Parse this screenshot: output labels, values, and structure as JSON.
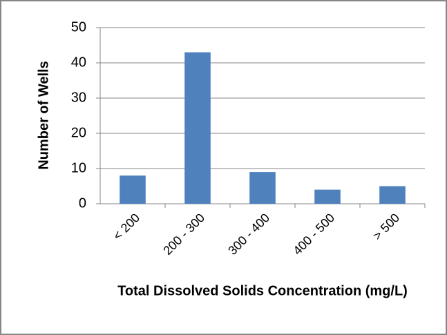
{
  "chart_data": {
    "type": "bar",
    "x_label": "Total Dissolved Solids Concentration (mg/L)",
    "y_label": "Number of Wells",
    "categories": [
      "< 200",
      "200 - 300",
      "300 - 400",
      "400 - 500",
      "> 500"
    ],
    "values": [
      8,
      43,
      9,
      4,
      5
    ],
    "color": "#4f81bd",
    "ylim": [
      0,
      50
    ],
    "yticks": [
      0,
      10,
      20,
      30,
      40,
      50
    ],
    "grid": true
  }
}
